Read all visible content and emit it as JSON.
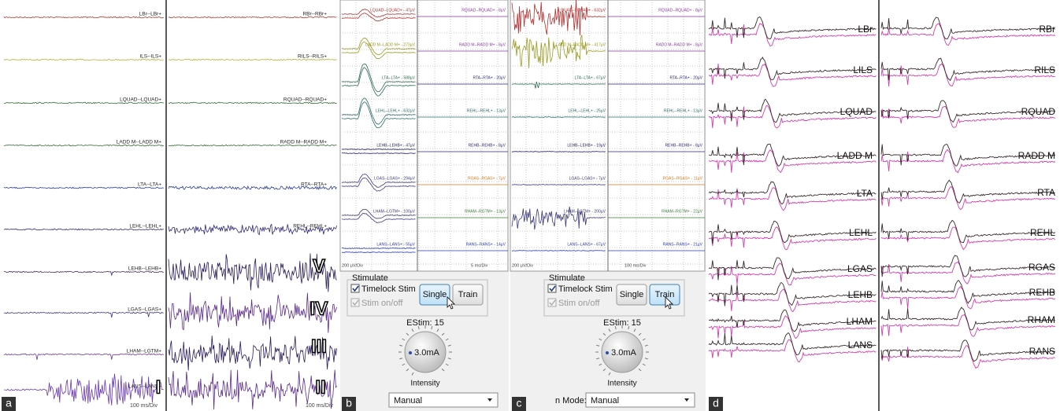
{
  "panels": {
    "a": {
      "label": "a",
      "left": [
        "LBr--LBr+",
        "ILS--ILS+",
        "LQUAD--LQUAD+",
        "LADD M--LADD M+",
        "LTA--LTA+",
        "LEHL--LEHL+",
        "LEHB--LEHB+",
        "LGAS--LGAS+",
        "LHAM--LGTM+",
        "LANS--LANS+"
      ],
      "right": [
        "RBr--RBr+",
        "RILS--RILS+",
        "RQUAD--RQUAD+",
        "RADD M--RADD M+",
        "RTA--RTA+",
        "REHL--REHL+"
      ],
      "numerals": [
        "V",
        "IV",
        "III",
        "II",
        "I"
      ],
      "left_scale": "100 ms/Div",
      "right_scale": "100 ms/Div"
    },
    "b": {
      "label": "b",
      "left": [
        "LQUAD--LQUAD+ - 47µV",
        "LADD M--LADD M+ - 273µV",
        "LTA--LTA+ - 588µV",
        "LEHL--LEHL+ - 632µV",
        "LEHB--LEHB+ - 47µV",
        "LGAS--LGAS+ - 294µV",
        "LHAM--LGTM+ - 100µV",
        "LANS--LANS+ - 55µV"
      ],
      "right": [
        "RQUAD--RQUAD+ - 8µV",
        "RADD M--RADD M+ - 8µV",
        "RTA--RTA+ - 20µV",
        "REHL--REHL+ - 13µV",
        "REHB--REHB+ - 8µV",
        "RGAS--RGAS+ - 7µV",
        "RHAM--RGTM+ - 13µV",
        "RANS--RANS+ - 14µV"
      ],
      "amp_scale": "200 µV/Div",
      "time_scale": "5 ms/Div",
      "stimulate": "Stimulate",
      "timelock": "Timelock Stim",
      "stim_onoff": "Stim on/off",
      "single": "Single",
      "train": "Train",
      "estim": "EStim: 15",
      "current": "3.0mA",
      "intensity": "Intensity",
      "mode": "Manual"
    },
    "c": {
      "label": "c",
      "left": [
        "LQUAD--LQUAD+ - 632µV",
        "LADD M--LADD M+ - 417µV",
        "LTA--LTA+ - 67µV",
        "LEHL--LEHL+ - 25µV",
        "LEHB--LEHB+ - 19µV",
        "LGAS--LGAS+ - 7µV",
        "LHAM--LGTM+ - 200µV",
        "LANS--LANS+ - 67µV"
      ],
      "right": [
        "RQUAD--RQUAD+ - 8µV",
        "RADD M--RADD M+ - 8µV",
        "RTA--RTA+ - 20µV",
        "REHL--REHL+ - 13µV",
        "REHB--REHB+ - 8µV",
        "RGAS--RGAS+ - 11µV",
        "RHAM--RGTM+ - 22µV",
        "RANS--RANS+ - 21µV"
      ],
      "amp_scale": "200 µV/Div",
      "time_scale": "100 ms/Div",
      "stimulate": "Stimulate",
      "timelock": "Timelock Stim",
      "stim_onoff": "Stim on/off",
      "single": "Single",
      "train": "Train",
      "estim": "EStim: 15",
      "current": "3.0mA",
      "intensity": "Intensity",
      "mode_label": "n Mode:",
      "mode": "Manual"
    },
    "d": {
      "label": "d",
      "left": [
        "LBr",
        "LILS",
        "LQUAD",
        "LADD M",
        "LTA",
        "LEHL",
        "LGAS",
        "LEHB",
        "LHAM",
        "LANS"
      ],
      "right": [
        "RBr",
        "RILS",
        "RQUAD",
        "RADD M",
        "RTA",
        "REHL",
        "RGAS",
        "REHB",
        "RHAM",
        "RANS"
      ]
    }
  }
}
